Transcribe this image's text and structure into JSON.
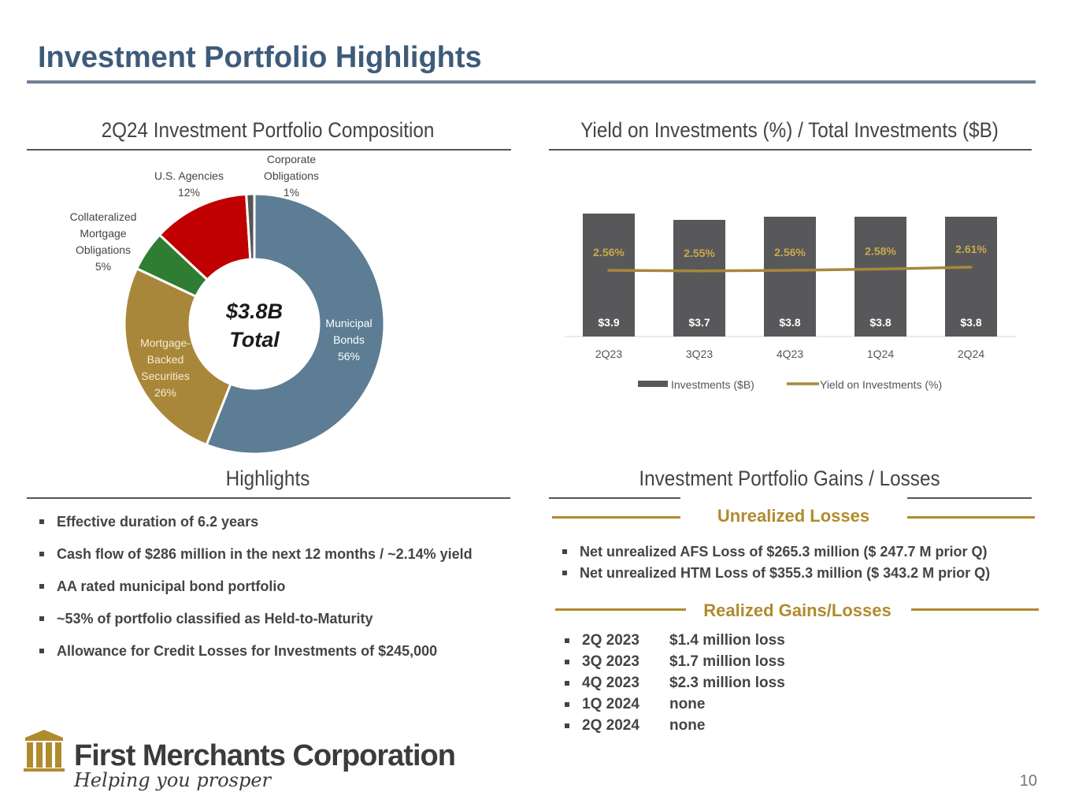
{
  "title": "Investment Portfolio Highlights",
  "composition": {
    "heading": "2Q24 Investment Portfolio Composition",
    "center_line1": "$3.8B",
    "center_line2": "Total",
    "labels": {
      "municipal": [
        "Municipal",
        "Bonds",
        "56%"
      ],
      "mbs": [
        "Mortgage-",
        "Backed",
        "Securities",
        "26%"
      ],
      "cmo": [
        "Collateralized",
        "Mortgage",
        "Obligations",
        "5%"
      ],
      "agencies": [
        "U.S. Agencies",
        "12%"
      ],
      "corporate": [
        "Corporate",
        "Obligations",
        "1%"
      ]
    }
  },
  "yield_chart": {
    "heading": "Yield on Investments (%) / Total Investments ($B)",
    "legend_bar": "Investments ($B)",
    "legend_line": "Yield on Investments (%)"
  },
  "chart_data": [
    {
      "type": "pie",
      "title": "2Q24 Investment Portfolio Composition",
      "categories": [
        "Municipal Bonds",
        "Mortgage-Backed Securities",
        "Collateralized Mortgage Obligations",
        "U.S. Agencies",
        "Corporate Obligations"
      ],
      "values": [
        56,
        26,
        5,
        12,
        1
      ],
      "colors": [
        "#5c7d93",
        "#a8873a",
        "#2f7d32",
        "#c00000",
        "#565656"
      ],
      "center_text": "$3.8B Total",
      "donut": true
    },
    {
      "type": "bar",
      "title": "Yield on Investments (%) / Total Investments ($B)",
      "categories": [
        "2Q23",
        "3Q23",
        "4Q23",
        "1Q24",
        "2Q24"
      ],
      "series": [
        {
          "name": "Investments ($B)",
          "type": "bar",
          "values": [
            3.9,
            3.7,
            3.8,
            3.8,
            3.8
          ],
          "labels": [
            "$3.9",
            "$3.7",
            "$3.8",
            "$3.8",
            "$3.8"
          ],
          "color": "#58585a"
        },
        {
          "name": "Yield on Investments (%)",
          "type": "line",
          "values": [
            2.56,
            2.55,
            2.56,
            2.58,
            2.61
          ],
          "labels": [
            "2.56%",
            "2.55%",
            "2.56%",
            "2.58%",
            "2.61%"
          ],
          "color": "#a8873a"
        }
      ],
      "legend": "bottom",
      "grid": false
    }
  ],
  "highlights": {
    "heading": "Highlights",
    "items": [
      "Effective duration of 6.2 years",
      "Cash flow of $286 million in the next 12 months / ~2.14% yield",
      "AA rated municipal bond portfolio",
      "~53% of portfolio classified as Held-to-Maturity",
      "Allowance for Credit Losses for Investments of $245,000"
    ]
  },
  "gains_losses": {
    "heading": "Investment Portfolio Gains / Losses",
    "unrealized_heading": "Unrealized Losses",
    "unrealized_items": [
      "Net unrealized AFS Loss of $265.3 million ($ 247.7 M prior Q)",
      "Net unrealized HTM Loss of $355.3 million ($ 343.2 M prior Q)"
    ],
    "realized_heading": "Realized Gains/Losses",
    "realized_items": [
      {
        "quarter": "2Q 2023",
        "value": "$1.4 million loss"
      },
      {
        "quarter": "3Q 2023",
        "value": "$1.7 million loss"
      },
      {
        "quarter": "4Q 2023",
        "value": "$2.3 million loss"
      },
      {
        "quarter": "1Q 2024",
        "value": "none"
      },
      {
        "quarter": "2Q 2024",
        "value": "none"
      }
    ]
  },
  "logo": {
    "name": "First Merchants Corporation",
    "tagline": "Helping you prosper",
    "icon": "building-columns-icon",
    "color": "#b08b2e"
  },
  "page_number": "10"
}
